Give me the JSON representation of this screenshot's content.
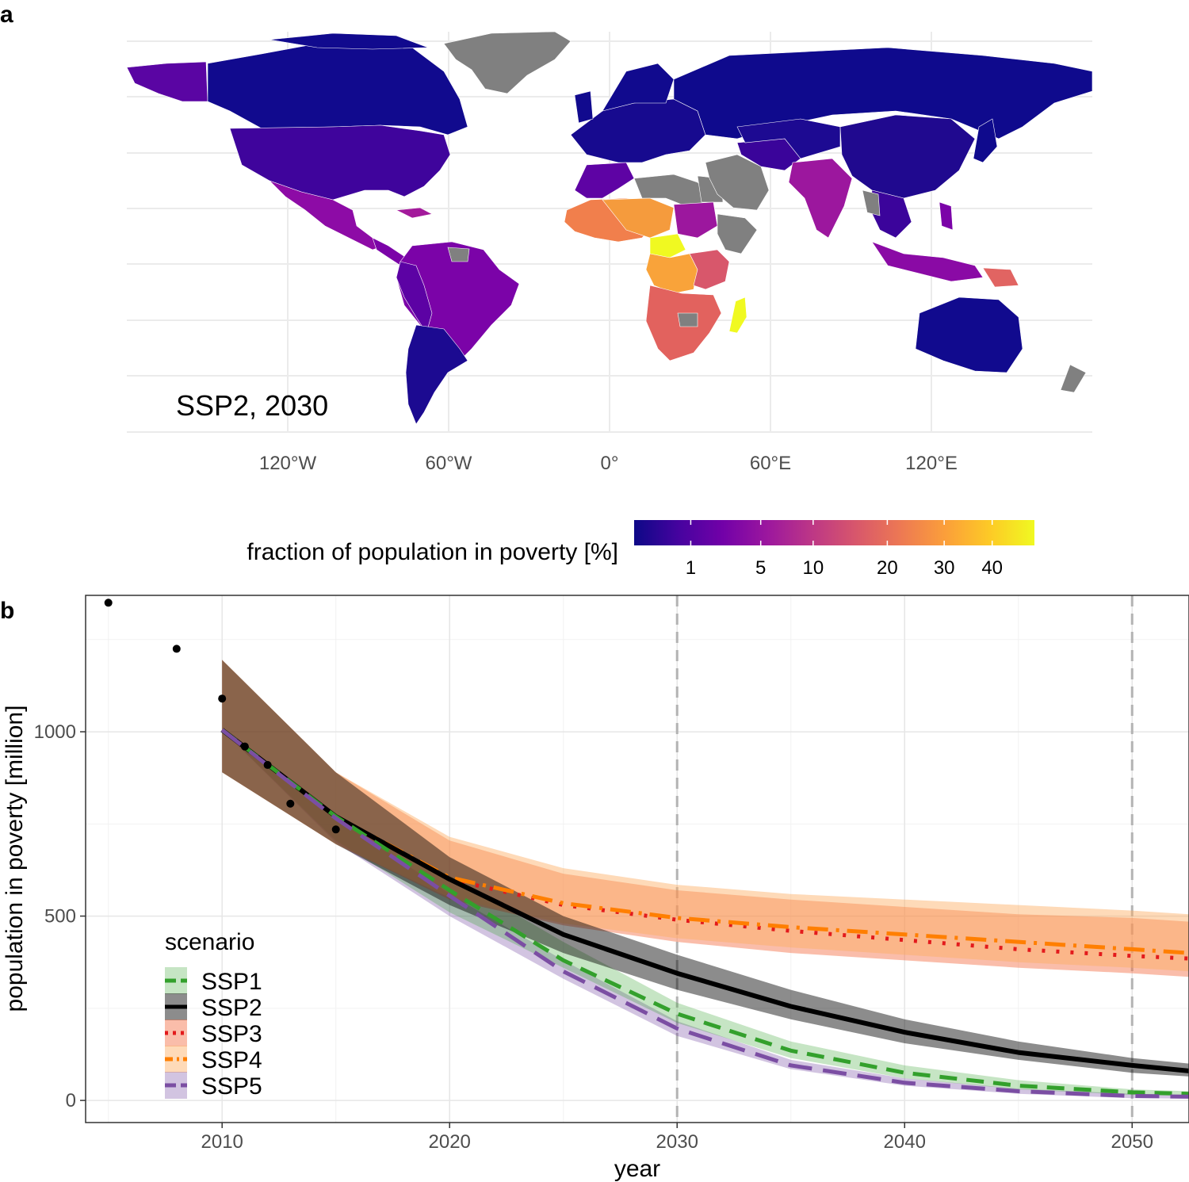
{
  "panel_a": {
    "letter": "a",
    "annotation": "SSP2, 2030",
    "lon_labels": [
      "120°W",
      "60°W",
      "0°",
      "60°E",
      "120°E"
    ],
    "colorbar": {
      "title": "fraction of population in poverty [%]",
      "ticks": [
        "1",
        "5",
        "10",
        "20",
        "30",
        "40"
      ],
      "colors": [
        "#0d0887",
        "#46039f",
        "#7201a8",
        "#9c179e",
        "#bd3786",
        "#d8576b",
        "#ed7953",
        "#fb9f3a",
        "#fdca26",
        "#f0f921"
      ]
    },
    "colors": {
      "ocean": "#ffffff",
      "no_data": "#808080",
      "graticule": "#ebebeb"
    }
  },
  "panel_b": {
    "letter": "b"
  },
  "chart_data": [
    {
      "type": "map",
      "title": "SSP2, 2030",
      "legend_title": "fraction of population in poverty [%]",
      "colorbar_ticks": [
        1,
        5,
        10,
        20,
        30,
        40
      ],
      "regions": [
        {
          "name": "North America",
          "value": 1
        },
        {
          "name": "Canada",
          "value": 0.5
        },
        {
          "name": "Mexico & Central America",
          "value": 5
        },
        {
          "name": "South America",
          "value": 4
        },
        {
          "name": "Southern Cone",
          "value": 1
        },
        {
          "name": "Europe & Russia",
          "value": 0.5
        },
        {
          "name": "China",
          "value": 1
        },
        {
          "name": "India",
          "value": 5
        },
        {
          "name": "Southeast Asia",
          "value": 4
        },
        {
          "name": "West Africa",
          "value": 25
        },
        {
          "name": "Central Africa",
          "value": 40
        },
        {
          "name": "East Africa",
          "value": 15
        },
        {
          "name": "Southern Africa",
          "value": 20
        },
        {
          "name": "Madagascar",
          "value": 45
        },
        {
          "name": "Australia",
          "value": 0.5
        }
      ]
    },
    {
      "type": "line",
      "xlabel": "year",
      "ylabel": "population in poverty [million]",
      "xlim": [
        2004,
        2052.5
      ],
      "ylim": [
        -60,
        1370
      ],
      "xticks": [
        2010,
        2020,
        2030,
        2040,
        2050
      ],
      "yticks": [
        0,
        500,
        1000
      ],
      "vlines": [
        2030,
        2050
      ],
      "legend_title": "scenario",
      "observed": {
        "x": [
          2005,
          2008,
          2010,
          2011,
          2012,
          2013,
          2015
        ],
        "y": [
          1350,
          1225,
          1090,
          960,
          910,
          805,
          735
        ]
      },
      "series": [
        {
          "name": "SSP1",
          "color": "#33a02c",
          "x": [
            2010,
            2015,
            2020,
            2025,
            2030,
            2035,
            2040,
            2045,
            2050,
            2052.5
          ],
          "y": [
            1005,
            770,
            570,
            380,
            235,
            135,
            75,
            40,
            22,
            18
          ],
          "lower": [
            1005,
            705,
            510,
            360,
            210,
            115,
            60,
            30,
            15,
            12
          ],
          "upper": [
            1005,
            775,
            610,
            430,
            265,
            160,
            95,
            55,
            30,
            25
          ]
        },
        {
          "name": "SSP2",
          "color": "#000000",
          "x": [
            2010,
            2015,
            2020,
            2025,
            2030,
            2035,
            2040,
            2045,
            2050,
            2052.5
          ],
          "y": [
            1005,
            770,
            600,
            450,
            345,
            255,
            185,
            130,
            95,
            80
          ],
          "lower": [
            890,
            695,
            530,
            400,
            300,
            220,
            155,
            110,
            75,
            65
          ],
          "upper": [
            1195,
            890,
            660,
            500,
            395,
            300,
            220,
            160,
            115,
            100
          ]
        },
        {
          "name": "SSP3",
          "color": "#e31a1c",
          "x": [
            2010,
            2015,
            2020,
            2025,
            2030,
            2035,
            2040,
            2045,
            2050,
            2052.5
          ],
          "y": [
            1005,
            770,
            600,
            530,
            490,
            460,
            435,
            410,
            392,
            385
          ],
          "lower": [
            890,
            695,
            545,
            475,
            430,
            400,
            380,
            360,
            345,
            335
          ],
          "upper": [
            1195,
            890,
            705,
            615,
            570,
            545,
            525,
            505,
            495,
            485
          ]
        },
        {
          "name": "SSP4",
          "color": "#ff7f00",
          "x": [
            2010,
            2015,
            2020,
            2025,
            2030,
            2035,
            2040,
            2045,
            2050,
            2052.5
          ],
          "y": [
            1005,
            770,
            605,
            535,
            495,
            470,
            450,
            430,
            410,
            400
          ],
          "lower": [
            890,
            695,
            550,
            480,
            440,
            415,
            395,
            375,
            360,
            350
          ],
          "upper": [
            1195,
            890,
            715,
            630,
            585,
            560,
            545,
            530,
            515,
            505
          ]
        },
        {
          "name": "SSP5",
          "color": "#6a3d9a",
          "x": [
            2010,
            2015,
            2020,
            2025,
            2030,
            2035,
            2040,
            2045,
            2050,
            2052.5
          ],
          "y": [
            1005,
            765,
            555,
            350,
            195,
            95,
            48,
            25,
            12,
            10
          ],
          "lower": [
            1005,
            700,
            500,
            330,
            175,
            85,
            40,
            18,
            6,
            5
          ],
          "upper": [
            1005,
            770,
            560,
            380,
            215,
            110,
            60,
            32,
            18,
            15
          ]
        }
      ]
    }
  ]
}
